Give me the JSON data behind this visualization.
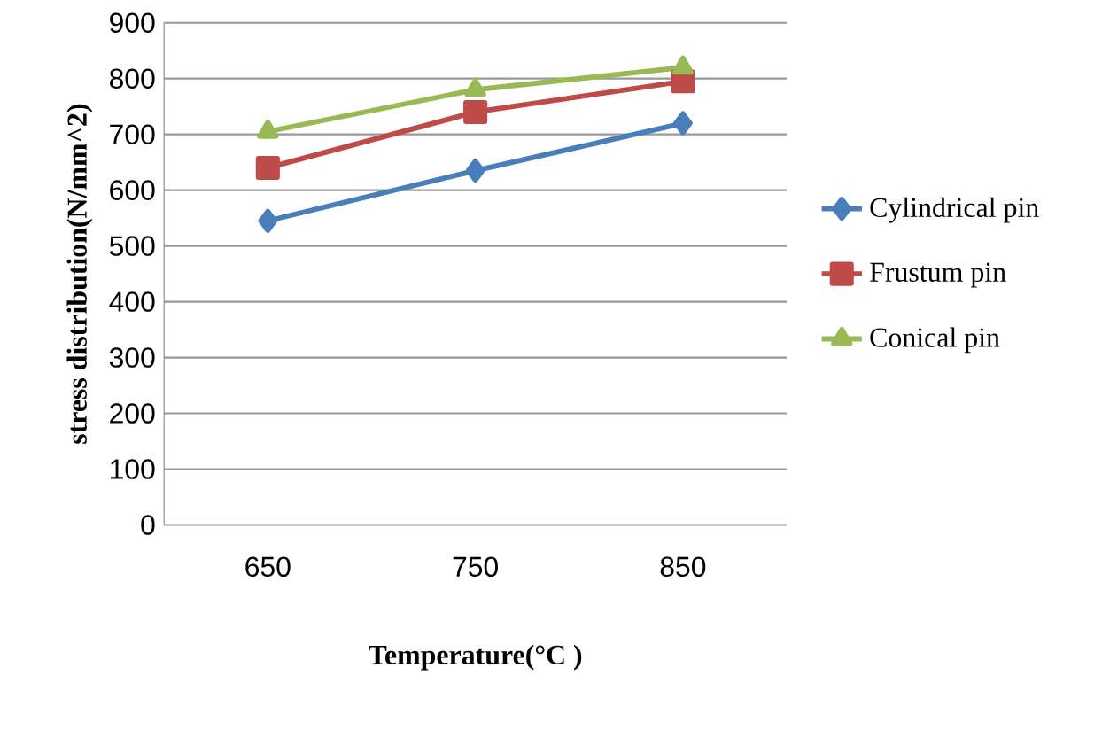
{
  "chart_data": {
    "type": "line",
    "xlabel": "Temperature(°C )",
    "ylabel": "stress distribution(N/mm^2)",
    "categories": [
      "650",
      "750",
      "850"
    ],
    "series": [
      {
        "name": "Cylindrical pin",
        "color": "#4a7ebb",
        "marker": "diamond",
        "values": [
          545,
          635,
          720
        ]
      },
      {
        "name": "Frustum pin",
        "color": "#be4b48",
        "marker": "square",
        "values": [
          640,
          740,
          795
        ]
      },
      {
        "name": "Conical pin",
        "color": "#98b954",
        "marker": "triangle",
        "values": [
          705,
          780,
          820
        ]
      }
    ],
    "ylim": [
      0,
      900
    ],
    "yticks": [
      0,
      100,
      200,
      300,
      400,
      500,
      600,
      700,
      800,
      900
    ],
    "grid": "y",
    "legend": "right",
    "line_style": "solid"
  }
}
